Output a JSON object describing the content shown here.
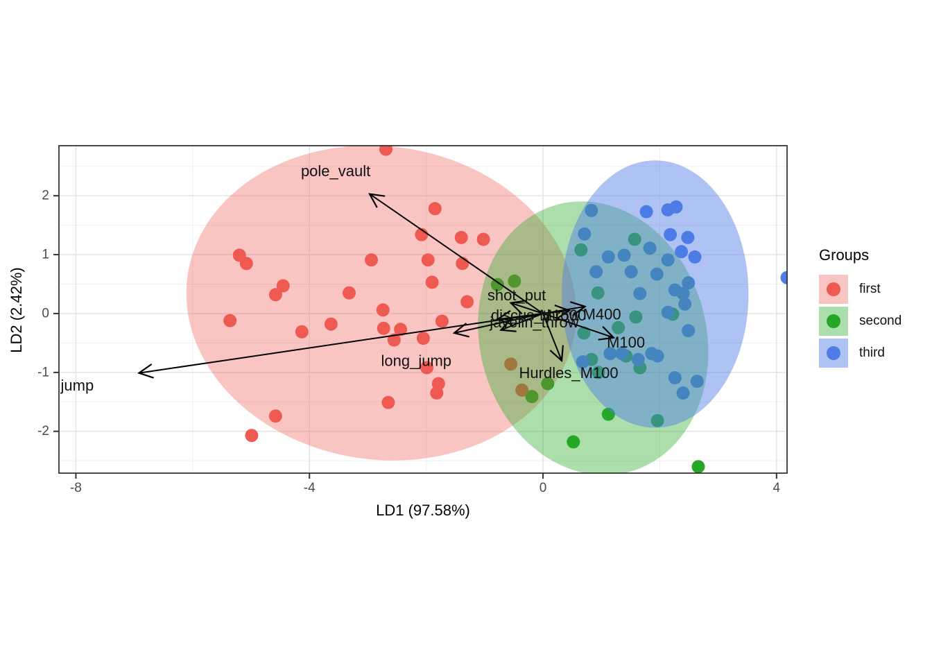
{
  "chart_data": {
    "type": "scatter",
    "title": "",
    "xlabel": "LD1 (97.58%)",
    "ylabel": "LD2 (2.42%)",
    "xlim": [
      -8.29,
      4.18
    ],
    "ylim": [
      -2.71,
      2.85
    ],
    "x_major_ticks": [
      -8,
      -4,
      0,
      4
    ],
    "x_minor_ticks": [
      -6,
      -2,
      2
    ],
    "y_major_ticks": [
      -2,
      -1,
      0,
      1,
      2
    ],
    "y_minor_ticks": [
      -2.5,
      -1.5,
      -0.5,
      0.5,
      1.5,
      2.5
    ],
    "grid": "major and minor, light gray on white panel",
    "legend": {
      "title": "Groups",
      "position": "right"
    },
    "point_radius_px": 9.5,
    "series": [
      {
        "name": "first",
        "color": "#ee5a52",
        "fill_alpha": 0.35,
        "ellipse": {
          "center": [
            -2.77,
            0.18
          ],
          "rx": 3.35,
          "ry": 2.66,
          "rotate_deg": 8
        },
        "points": [
          [
            -5.2,
            0.99
          ],
          [
            -5.08,
            0.85
          ],
          [
            -4.45,
            0.47
          ],
          [
            -4.58,
            0.32
          ],
          [
            -5.36,
            -0.12
          ],
          [
            -4.13,
            -0.31
          ],
          [
            -3.63,
            -0.18
          ],
          [
            -3.32,
            0.35
          ],
          [
            -2.94,
            0.91
          ],
          [
            -2.74,
            0.06
          ],
          [
            -2.73,
            -0.25
          ],
          [
            -2.44,
            -0.27
          ],
          [
            -2.55,
            -0.45
          ],
          [
            -2.05,
            -0.42
          ],
          [
            -1.85,
            1.78
          ],
          [
            -2.08,
            1.34
          ],
          [
            -1.97,
            0.91
          ],
          [
            -1.9,
            0.53
          ],
          [
            -1.73,
            -0.13
          ],
          [
            -1.4,
            1.29
          ],
          [
            -1.38,
            0.85
          ],
          [
            -2.69,
            2.79
          ],
          [
            -1.02,
            1.26
          ],
          [
            -4.58,
            -1.74
          ],
          [
            -4.99,
            -2.07
          ],
          [
            -2.65,
            -1.51
          ],
          [
            -1.99,
            -0.92
          ],
          [
            -1.79,
            -1.19
          ],
          [
            -1.82,
            -1.35
          ],
          [
            -1.3,
            0.2
          ],
          [
            -0.55,
            -0.86
          ],
          [
            -0.36,
            -1.3
          ]
        ]
      },
      {
        "name": "second",
        "color": "#26a826",
        "fill_alpha": 0.38,
        "ellipse": {
          "center": [
            0.86,
            -0.42
          ],
          "rx": 1.94,
          "ry": 2.35,
          "rotate_deg": -15
        },
        "points": [
          [
            -0.78,
            0.49
          ],
          [
            -0.49,
            0.55
          ],
          [
            1.57,
            1.26
          ],
          [
            0.65,
            1.08
          ],
          [
            0.94,
            0.35
          ],
          [
            1.59,
            -0.06
          ],
          [
            1.29,
            -0.24
          ],
          [
            2.22,
            -0.01
          ],
          [
            0.7,
            -0.33
          ],
          [
            1.42,
            -0.72
          ],
          [
            0.83,
            -0.78
          ],
          [
            0.08,
            -1.19
          ],
          [
            -0.19,
            -1.41
          ],
          [
            0.95,
            -1.0
          ],
          [
            1.66,
            -0.92
          ],
          [
            1.12,
            -1.71
          ],
          [
            1.96,
            -1.82
          ],
          [
            0.52,
            -2.18
          ],
          [
            2.66,
            -2.6
          ]
        ]
      },
      {
        "name": "third",
        "color": "#4e7de8",
        "fill_alpha": 0.46,
        "ellipse": {
          "center": [
            1.92,
            0.33
          ],
          "rx": 1.6,
          "ry": 2.27,
          "rotate_deg": 0
        },
        "points": [
          [
            0.83,
            1.75
          ],
          [
            1.77,
            1.73
          ],
          [
            2.14,
            1.76
          ],
          [
            2.28,
            1.81
          ],
          [
            0.71,
            1.35
          ],
          [
            2.18,
            1.34
          ],
          [
            2.48,
            1.29
          ],
          [
            1.83,
            1.11
          ],
          [
            1.39,
            0.99
          ],
          [
            1.12,
            0.96
          ],
          [
            2.14,
            0.91
          ],
          [
            2.37,
            1.05
          ],
          [
            2.6,
            0.96
          ],
          [
            0.91,
            0.71
          ],
          [
            1.51,
            0.71
          ],
          [
            1.95,
            0.67
          ],
          [
            4.18,
            0.61
          ],
          [
            1.66,
            0.34
          ],
          [
            2.49,
            0.52
          ],
          [
            2.4,
            0.34
          ],
          [
            2.26,
            0.4
          ],
          [
            2.43,
            0.16
          ],
          [
            2.14,
            0.02
          ],
          [
            2.49,
            -0.29
          ],
          [
            1.15,
            -0.68
          ],
          [
            1.86,
            -0.68
          ],
          [
            0.68,
            -0.82
          ],
          [
            1.35,
            -0.68
          ],
          [
            1.63,
            -0.78
          ],
          [
            1.96,
            -0.72
          ],
          [
            2.26,
            -1.09
          ],
          [
            2.64,
            -1.15
          ],
          [
            2.4,
            -1.35
          ]
        ]
      }
    ],
    "loadings": [
      {
        "label": "pole_vault",
        "tip": [
          -2.97,
          2.03
        ],
        "label_pos": [
          -3.55,
          2.42
        ],
        "anchor": "middle"
      },
      {
        "label": "jump",
        "tip": [
          -6.92,
          -1.01
        ],
        "label_pos": [
          -8.26,
          -1.22
        ],
        "anchor": "start"
      },
      {
        "label": "long_jump",
        "tip": [
          -1.52,
          -0.33
        ],
        "label_pos": [
          -2.17,
          -0.8
        ],
        "anchor": "middle"
      },
      {
        "label": "shot_put",
        "tip": [
          -0.55,
          0.18
        ],
        "label_pos": [
          -0.45,
          0.31
        ],
        "anchor": "middle"
      },
      {
        "label": "discus_throw",
        "tip": [
          -0.78,
          -0.1
        ],
        "label_pos": [
          -0.13,
          -0.03
        ],
        "anchor": "middle"
      },
      {
        "label": "javelin_throw",
        "tip": [
          -0.72,
          -0.28
        ],
        "label_pos": [
          -0.15,
          -0.15
        ],
        "anchor": "middle"
      },
      {
        "label": "M1500",
        "tip": [
          0.45,
          0.05
        ],
        "label_pos": [
          0.34,
          -0.03
        ],
        "anchor": "middle"
      },
      {
        "label": "M400",
        "tip": [
          0.72,
          0.12
        ],
        "label_pos": [
          1.01,
          -0.01
        ],
        "anchor": "middle"
      },
      {
        "label": "M100",
        "tip": [
          1.21,
          -0.41
        ],
        "label_pos": [
          1.42,
          -0.49
        ],
        "anchor": "middle"
      },
      {
        "label": "Hurdles_M100",
        "tip": [
          0.32,
          -0.8
        ],
        "label_pos": [
          0.44,
          -1.01
        ],
        "anchor": "middle"
      }
    ],
    "legend_entries": [
      {
        "label": "first",
        "color": "#ee5a52",
        "fill_alpha": 0.35
      },
      {
        "label": "second",
        "color": "#26a826",
        "fill_alpha": 0.38
      },
      {
        "label": "third",
        "color": "#4e7de8",
        "fill_alpha": 0.46
      }
    ],
    "style": {
      "grid_major_color": "#e2e2e2",
      "grid_minor_color": "#efefef",
      "panel_border_color": "#2a2a2a",
      "tick_color": "#333333",
      "tick_label_color": "#4a4a4a",
      "label_color": "#111111",
      "arrow_color": "#000000"
    }
  }
}
